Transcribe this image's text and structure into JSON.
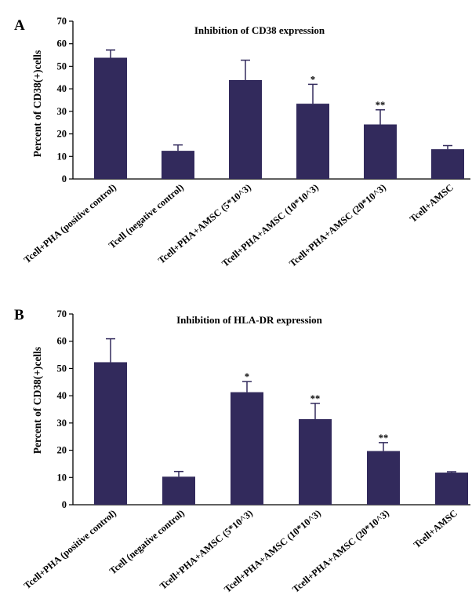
{
  "chart_data": [
    {
      "panel": "A",
      "type": "bar",
      "title": "Inhibition of CD38 expression",
      "ylabel": "Percent of CD38(+)cells",
      "xlabel": "",
      "ylim": [
        0,
        70
      ],
      "yticks": [
        "0",
        "10",
        "20",
        "30",
        "40",
        "50",
        "60",
        "70"
      ],
      "categories": [
        "Tcell+PHA (positive control)",
        "Tcell (negative control)",
        "Tcell+PHA+AMSC (5*10^3)",
        "Tcell+PHA+AMSC (10*10^3)",
        "Tcell+PHA+AMSC (20*10^3)",
        "Tcell+AMSC"
      ],
      "values": [
        53.8,
        12.5,
        43.9,
        33.4,
        24.2,
        13.2
      ],
      "errors": [
        3.4,
        2.6,
        8.8,
        8.6,
        6.5,
        1.6
      ],
      "significance": [
        "",
        "",
        "",
        "*",
        "**",
        ""
      ],
      "bar_color": "#322a5c",
      "grid": false
    },
    {
      "panel": "B",
      "type": "bar",
      "title": "Inhibition of HLA-DR expression",
      "ylabel": "Percent of CD38(+)cells",
      "xlabel": "",
      "ylim": [
        0,
        70
      ],
      "yticks": [
        "0",
        "10",
        "20",
        "30",
        "40",
        "50",
        "60",
        "70"
      ],
      "categories": [
        "Tcell+PHA (positive control)",
        "Tcell (negative control)",
        "Tcell+PHA+AMSC (5*10^3)",
        "Tcell+PHA+AMSC (10*10^3)",
        "Tcell+PHA+AMSC (20*10^3)",
        "Tcell+AMSC"
      ],
      "values": [
        52.3,
        10.3,
        41.3,
        31.4,
        19.7,
        11.8
      ],
      "errors": [
        8.6,
        1.9,
        3.9,
        5.8,
        3.1,
        0.3
      ],
      "significance": [
        "",
        "",
        "*",
        "**",
        "**",
        ""
      ],
      "bar_color": "#322a5c",
      "grid": false
    }
  ]
}
